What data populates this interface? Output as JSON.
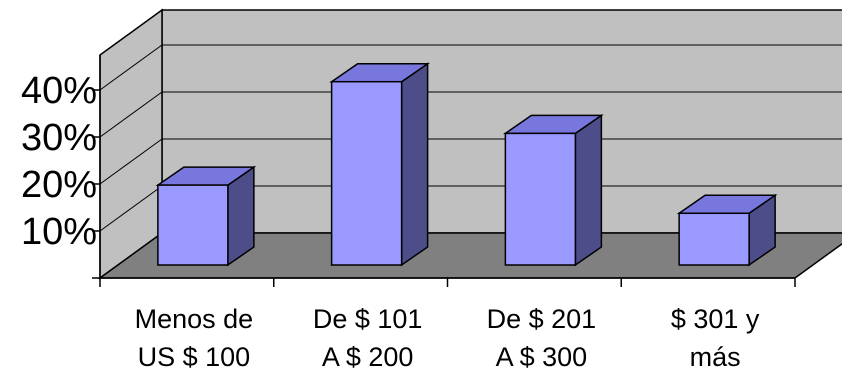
{
  "chart_data": {
    "type": "bar",
    "title": "",
    "xlabel": "",
    "ylabel": "",
    "categories": [
      [
        "Menos de",
        "US $ 100"
      ],
      [
        "De $ 101",
        "A $ 200"
      ],
      [
        "De $ 201",
        "A $ 300"
      ],
      [
        "$ 301 y",
        "más"
      ]
    ],
    "values": [
      17,
      39,
      28,
      11
    ],
    "value_format": "percent",
    "ylim": [
      0,
      40
    ],
    "yticks": [
      10,
      20,
      30,
      40
    ],
    "ytick_labels": [
      "10%",
      "20%",
      "30%",
      "40%"
    ],
    "grid": true,
    "legend": "none",
    "style": "3d-column"
  },
  "colors": {
    "bar_front": "#9999ff",
    "bar_top": "#7777dd",
    "bar_side": "#4d4d8a",
    "wall": "#c0c0c0",
    "floor": "#808080",
    "gridline": "#000000"
  }
}
